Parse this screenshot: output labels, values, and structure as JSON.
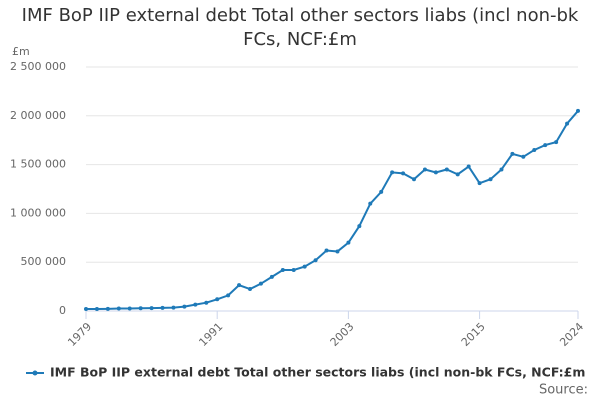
{
  "chart_data": {
    "type": "line",
    "title": "IMF BoP IIP external debt Total other sectors liabs (incl non-bk FCs, NCF:£m",
    "y_axis_label": "£m",
    "source": "Source:",
    "x": [
      1979,
      1980,
      1981,
      1982,
      1983,
      1984,
      1985,
      1986,
      1987,
      1988,
      1989,
      1990,
      1991,
      1992,
      1993,
      1994,
      1995,
      1996,
      1997,
      1998,
      1999,
      2000,
      2001,
      2002,
      2003,
      2004,
      2005,
      2006,
      2007,
      2008,
      2009,
      2010,
      2011,
      2012,
      2013,
      2014,
      2015,
      2016,
      2017,
      2018,
      2019,
      2020,
      2021,
      2022,
      2023,
      2024
    ],
    "xlim": [
      1979,
      2024
    ],
    "xticks": [
      1979,
      1991,
      2003,
      2015,
      2024
    ],
    "ylim": [
      0,
      2500000
    ],
    "yticks": [
      0,
      {
        "value": 500000,
        "label": "500 000"
      },
      {
        "value": 1000000,
        "label": "1 000 000"
      },
      {
        "value": 1500000,
        "label": "1 500 000"
      },
      {
        "value": 2000000,
        "label": "2 000 000"
      },
      {
        "value": 2500000,
        "label": "2 500 000"
      }
    ],
    "grid": true,
    "series": [
      {
        "name": "IMF BoP IIP external debt Total other sectors liabs (incl non-bk FCs, NCF:£m",
        "color": "#1f7ab8",
        "values": [
          20000,
          20000,
          22000,
          25000,
          25000,
          28000,
          30000,
          32000,
          35000,
          45000,
          65000,
          85000,
          120000,
          160000,
          265000,
          225000,
          280000,
          350000,
          420000,
          420000,
          455000,
          520000,
          620000,
          610000,
          700000,
          870000,
          1100000,
          1220000,
          1420000,
          1410000,
          1350000,
          1450000,
          1420000,
          1450000,
          1400000,
          1480000,
          1310000,
          1350000,
          1450000,
          1610000,
          1580000,
          1650000,
          1700000,
          1730000,
          1920000,
          2050000
        ]
      }
    ]
  }
}
